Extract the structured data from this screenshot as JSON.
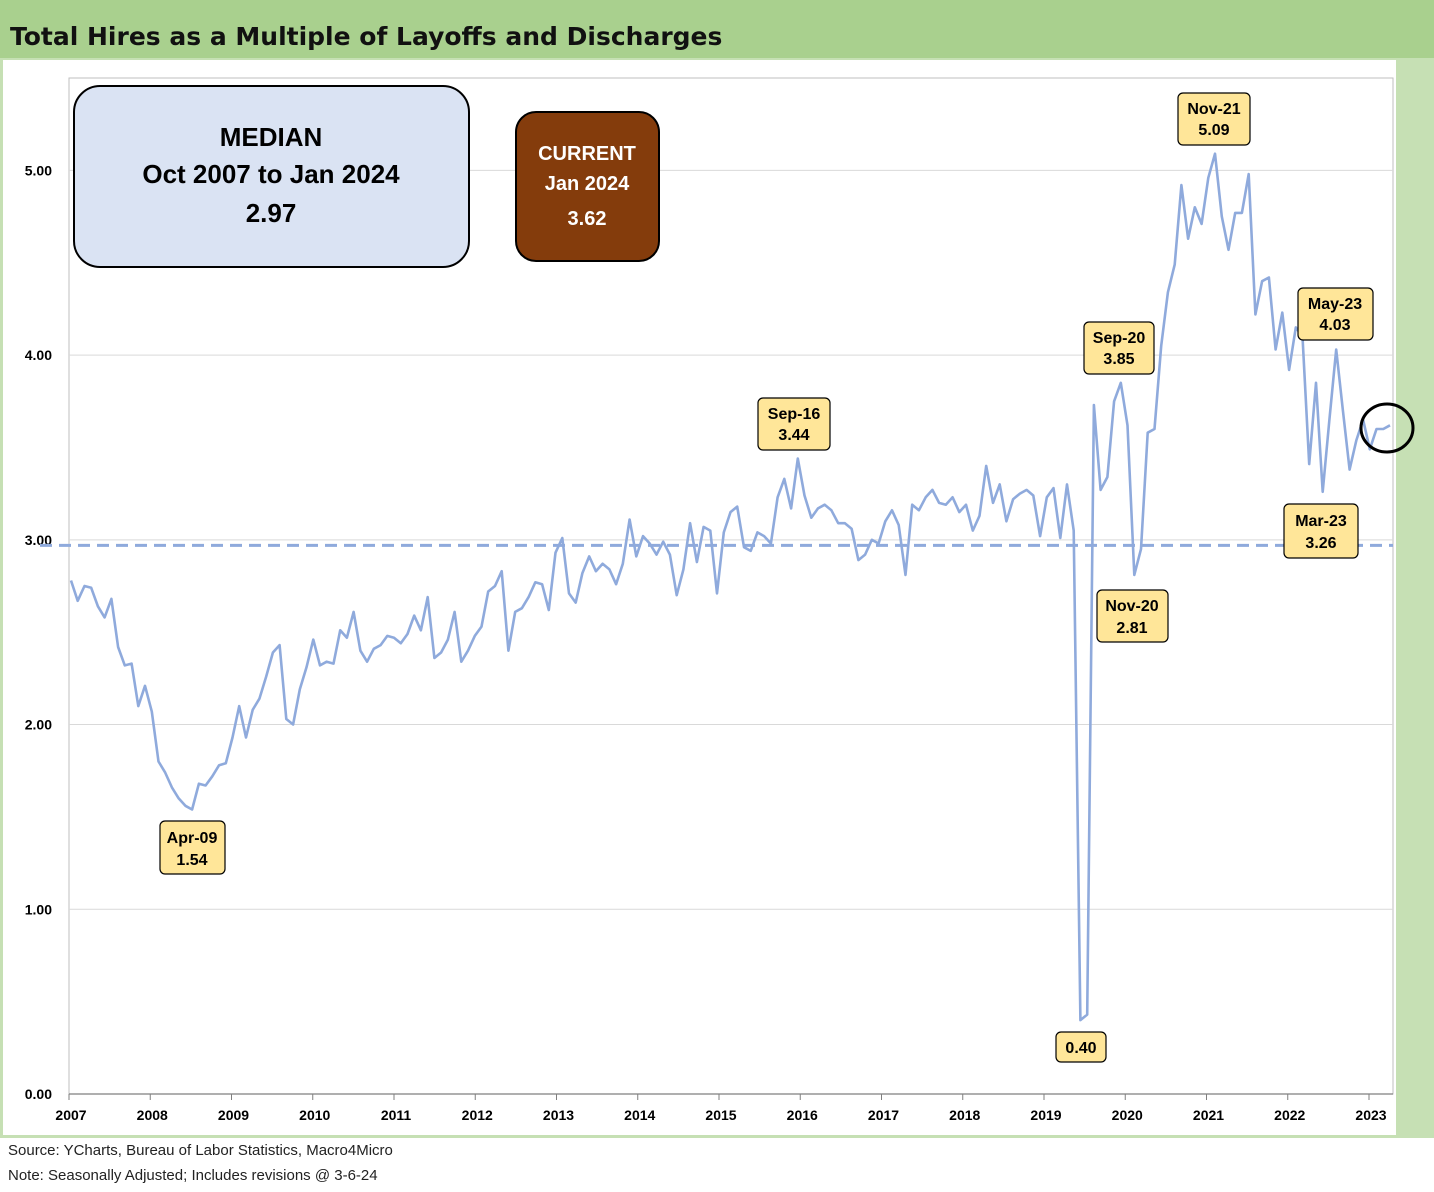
{
  "title": "Total Hires as a Multiple of Layoffs and Discharges",
  "footer": {
    "source": "Source: YCharts, Bureau of Labor Statistics, Macro4Micro",
    "note": "Note: Seasonally Adjusted; Includes revisions @ 3-6-24"
  },
  "median_box": {
    "line1": "MEDIAN",
    "line2": "Oct 2007 to Jan 2024",
    "line3": "2.97"
  },
  "current_box": {
    "line1": "CURRENT",
    "line2": "Jan 2024",
    "line3": "3.62"
  },
  "colors": {
    "series": "#8faadc",
    "median": "#8faadc",
    "title_bar": "#a9d08e",
    "median_box": "#dae3f3",
    "current_box": "#843c0c",
    "callout": "#ffe699"
  },
  "chart_data": {
    "type": "line",
    "title": "Total Hires as a Multiple of Layoffs and Discharges",
    "xlabel": "",
    "ylabel": "",
    "ylim": [
      0,
      5.5
    ],
    "y_ticks": [
      "0.00",
      "1.00",
      "2.00",
      "3.00",
      "4.00",
      "5.00"
    ],
    "y_tick_values": [
      0,
      1,
      2,
      3,
      4,
      5
    ],
    "x_ticks": [
      "2007",
      "2008",
      "2009",
      "2010",
      "2011",
      "2012",
      "2013",
      "2014",
      "2015",
      "2016",
      "2017",
      "2018",
      "2019",
      "2020",
      "2021",
      "2022",
      "2023"
    ],
    "grid": "horizontal",
    "median": 2.97,
    "series": [
      {
        "values": [
          2.78,
          2.67,
          2.75,
          2.74,
          2.64,
          2.58,
          2.68,
          2.42,
          2.32,
          2.33,
          2.1,
          2.21,
          2.07,
          1.8,
          1.74,
          1.66,
          1.6,
          1.56,
          1.54,
          1.68,
          1.67,
          1.72,
          1.78,
          1.79,
          1.93,
          2.1,
          1.93,
          2.08,
          2.14,
          2.26,
          2.39,
          2.43,
          2.03,
          2.0,
          2.19,
          2.31,
          2.46,
          2.32,
          2.34,
          2.33,
          2.51,
          2.47,
          2.61,
          2.4,
          2.34,
          2.41,
          2.43,
          2.48,
          2.47,
          2.44,
          2.49,
          2.59,
          2.51,
          2.69,
          2.36,
          2.39,
          2.46,
          2.61,
          2.34,
          2.4,
          2.48,
          2.53,
          2.72,
          2.75,
          2.83,
          2.4,
          2.61,
          2.63,
          2.69,
          2.77,
          2.76,
          2.62,
          2.93,
          3.01,
          2.71,
          2.66,
          2.82,
          2.91,
          2.83,
          2.87,
          2.84,
          2.76,
          2.87,
          3.11,
          2.91,
          3.02,
          2.98,
          2.92,
          2.99,
          2.92,
          2.7,
          2.84,
          3.09,
          2.88,
          3.07,
          3.05,
          2.71,
          3.04,
          3.15,
          3.18,
          2.96,
          2.94,
          3.04,
          3.02,
          2.98,
          3.23,
          3.33,
          3.17,
          3.44,
          3.24,
          3.12,
          3.17,
          3.19,
          3.16,
          3.09,
          3.09,
          3.06,
          2.89,
          2.92,
          3.0,
          2.98,
          3.1,
          3.16,
          3.08,
          2.81,
          3.19,
          3.16,
          3.23,
          3.27,
          3.2,
          3.19,
          3.23,
          3.15,
          3.19,
          3.05,
          3.13,
          3.4,
          3.2,
          3.3,
          3.1,
          3.22,
          3.25,
          3.27,
          3.24,
          3.02,
          3.23,
          3.28,
          3.01,
          3.3,
          3.05,
          0.4,
          0.43,
          3.73,
          3.27,
          3.34,
          3.75,
          3.85,
          3.62,
          2.81,
          2.95,
          3.58,
          3.6,
          4.05,
          4.34,
          4.49,
          4.92,
          4.63,
          4.8,
          4.71,
          4.96,
          5.09,
          4.75,
          4.57,
          4.77,
          4.77,
          4.98,
          4.22,
          4.4,
          4.42,
          4.03,
          4.23,
          3.92,
          4.15,
          4.1,
          3.41,
          3.85,
          3.26,
          3.65,
          4.03,
          3.7,
          3.38,
          3.54,
          3.65,
          3.49,
          3.6,
          3.6,
          3.62
        ]
      }
    ],
    "annotations": [
      {
        "line1": "Apr-09",
        "line2": "1.54"
      },
      {
        "line1": "Sep-16",
        "line2": "3.44"
      },
      {
        "line1": "Sep-20",
        "line2": "3.85"
      },
      {
        "line1": "Nov-20",
        "line2": "2.81"
      },
      {
        "line1": "Nov-21",
        "line2": "5.09"
      },
      {
        "line1": "May-23",
        "line2": "4.03"
      },
      {
        "line1": "Mar-23",
        "line2": "3.26"
      },
      {
        "line1": "0.40",
        "line2": ""
      }
    ]
  }
}
